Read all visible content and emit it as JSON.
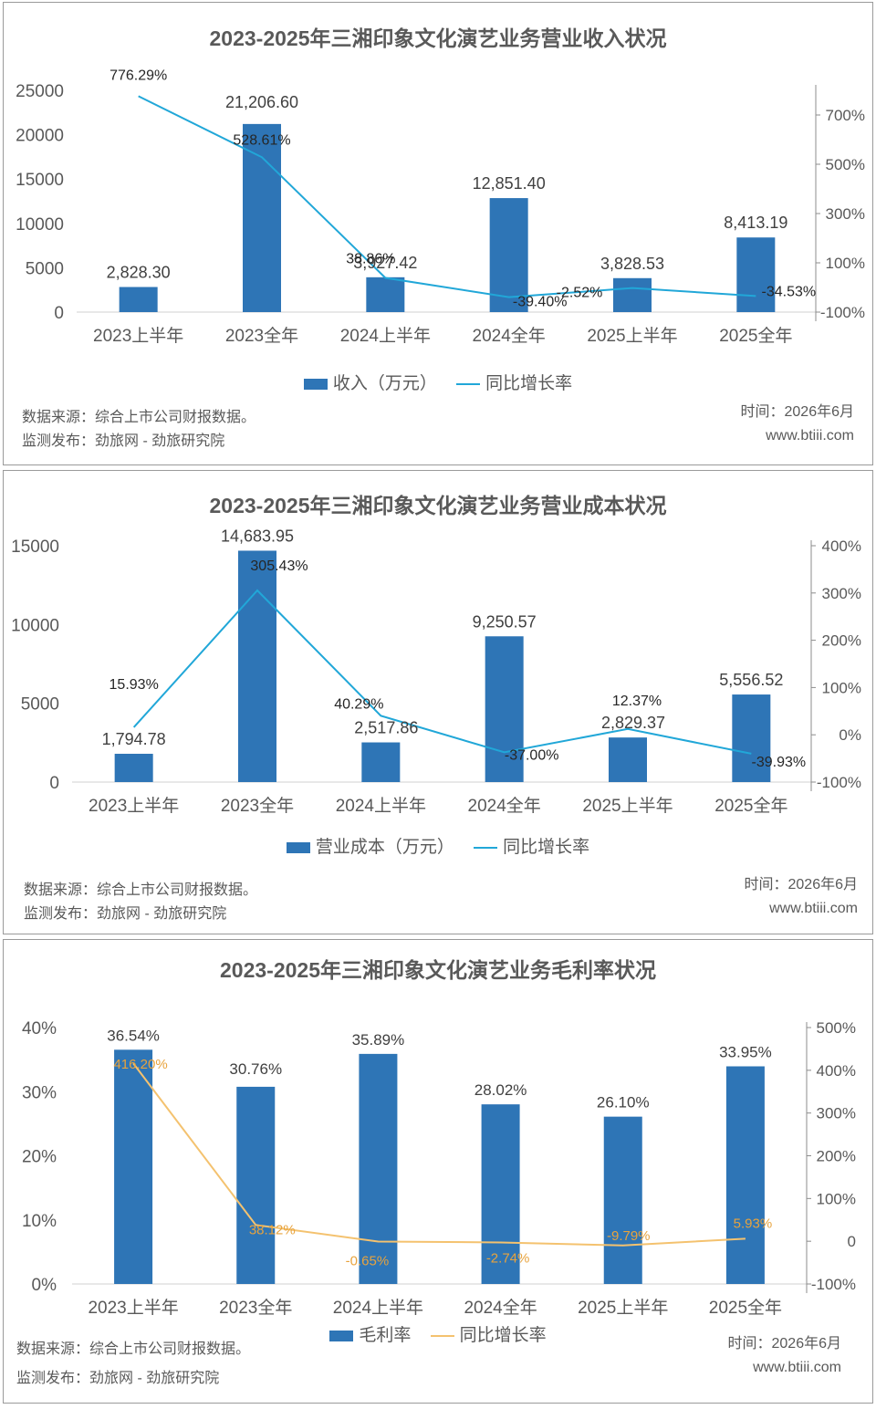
{
  "panels": [
    {
      "title": "2023-2025年三湘印象文化演艺业务营业收入状况",
      "legend_bar": "收入（万元）",
      "legend_line": "同比增长率",
      "source": "数据来源：综合上市公司财报数据。",
      "publisher": "监测发布：劲旅网 - 劲旅研究院",
      "time": "时间：2026年6月",
      "site": "www.btiii.com"
    },
    {
      "title": "2023-2025年三湘印象文化演艺业务营业成本状况",
      "legend_bar": "营业成本（万元）",
      "legend_line": "同比增长率",
      "source": "数据来源：综合上市公司财报数据。",
      "publisher": "监测发布：劲旅网 - 劲旅研究院",
      "time": "时间：2026年6月",
      "site": "www.btiii.com"
    },
    {
      "title": "2023-2025年三湘印象文化演艺业务毛利率状况",
      "legend_bar": "毛利率",
      "legend_line": "同比增长率",
      "source": "数据来源：综合上市公司财报数据。",
      "publisher": "监测发布：劲旅网 - 劲旅研究院",
      "time": "时间：2026年6月",
      "site": "www.btiii.com"
    }
  ],
  "chart_data": [
    {
      "type": "bar",
      "title": "2023-2025年三湘印象文化演艺业务营业收入状况",
      "categories": [
        "2023上半年",
        "2023全年",
        "2024上半年",
        "2024全年",
        "2025上半年",
        "2025全年"
      ],
      "series": [
        {
          "name": "收入（万元）",
          "type": "bar",
          "axis": "left",
          "values": [
            2828.3,
            21206.6,
            3927.42,
            12851.4,
            3828.53,
            8413.19
          ],
          "labels": [
            "2,828.30",
            "21,206.60",
            "3,927.42",
            "12,851.40",
            "3,828.53",
            "8,413.19"
          ]
        },
        {
          "name": "同比增长率",
          "type": "line",
          "axis": "right",
          "values": [
            776.29,
            528.61,
            38.86,
            -39.4,
            -2.52,
            -34.53
          ],
          "labels": [
            "776.29%",
            "528.61%",
            "38.86%",
            "-39.40%",
            "-2.52%",
            "-34.53%"
          ]
        }
      ],
      "left_ticks": [
        "0",
        "5000",
        "10000",
        "15000",
        "20000",
        "25000"
      ],
      "right_ticks": [
        "-100%",
        "100%",
        "300%",
        "500%",
        "700%"
      ],
      "ylim_left": [
        0,
        25000
      ],
      "ylim_right": [
        -100,
        800
      ],
      "bar_color": "#2e75b6",
      "line_color": "#21a7d8"
    },
    {
      "type": "bar",
      "title": "2023-2025年三湘印象文化演艺业务营业成本状况",
      "categories": [
        "2023上半年",
        "2023全年",
        "2024上半年",
        "2024全年",
        "2025上半年",
        "2025全年"
      ],
      "series": [
        {
          "name": "营业成本（万元）",
          "type": "bar",
          "axis": "left",
          "values": [
            1794.78,
            14683.95,
            2517.86,
            9250.57,
            2829.37,
            5556.52
          ],
          "labels": [
            "1,794.78",
            "14,683.95",
            "2,517.86",
            "9,250.57",
            "2,829.37",
            "5,556.52"
          ]
        },
        {
          "name": "同比增长率",
          "type": "line",
          "axis": "right",
          "values": [
            15.93,
            305.43,
            40.29,
            -37.0,
            12.37,
            -39.93
          ],
          "labels": [
            "15.93%",
            "305.43%",
            "40.29%",
            "-37.00%",
            "12.37%",
            "-39.93%"
          ]
        }
      ],
      "left_ticks": [
        "0",
        "5000",
        "10000",
        "15000"
      ],
      "right_ticks": [
        "-100%",
        "0%",
        "100%",
        "200%",
        "300%",
        "400%"
      ],
      "ylim_left": [
        0,
        15000
      ],
      "ylim_right": [
        -100,
        400
      ],
      "bar_color": "#2e75b6",
      "line_color": "#21a7d8"
    },
    {
      "type": "bar",
      "title": "2023-2025年三湘印象文化演艺业务毛利率状况",
      "categories": [
        "2023上半年",
        "2023全年",
        "2024上半年",
        "2024全年",
        "2025上半年",
        "2025全年"
      ],
      "series": [
        {
          "name": "毛利率",
          "type": "bar",
          "axis": "left",
          "values": [
            36.54,
            30.76,
            35.89,
            28.02,
            26.1,
            33.95
          ],
          "labels": [
            "36.54%",
            "30.76%",
            "35.89%",
            "28.02%",
            "26.10%",
            "33.95%"
          ]
        },
        {
          "name": "同比增长率",
          "type": "line",
          "axis": "right",
          "values": [
            416.2,
            38.12,
            -0.65,
            -2.74,
            -9.79,
            5.93
          ],
          "labels": [
            "416.20%",
            "38.12%",
            "-0.65%",
            "-2.74%",
            "-9.79%",
            "5.93%"
          ]
        }
      ],
      "left_ticks": [
        "0%",
        "10%",
        "20%",
        "30%",
        "40%"
      ],
      "right_ticks": [
        "-100%",
        "0",
        "100%",
        "200%",
        "300%",
        "400%",
        "500%"
      ],
      "ylim_left": [
        0,
        40
      ],
      "ylim_right": [
        -100,
        500
      ],
      "bar_color": "#2e75b6",
      "line_color": "#f4c26f"
    }
  ]
}
